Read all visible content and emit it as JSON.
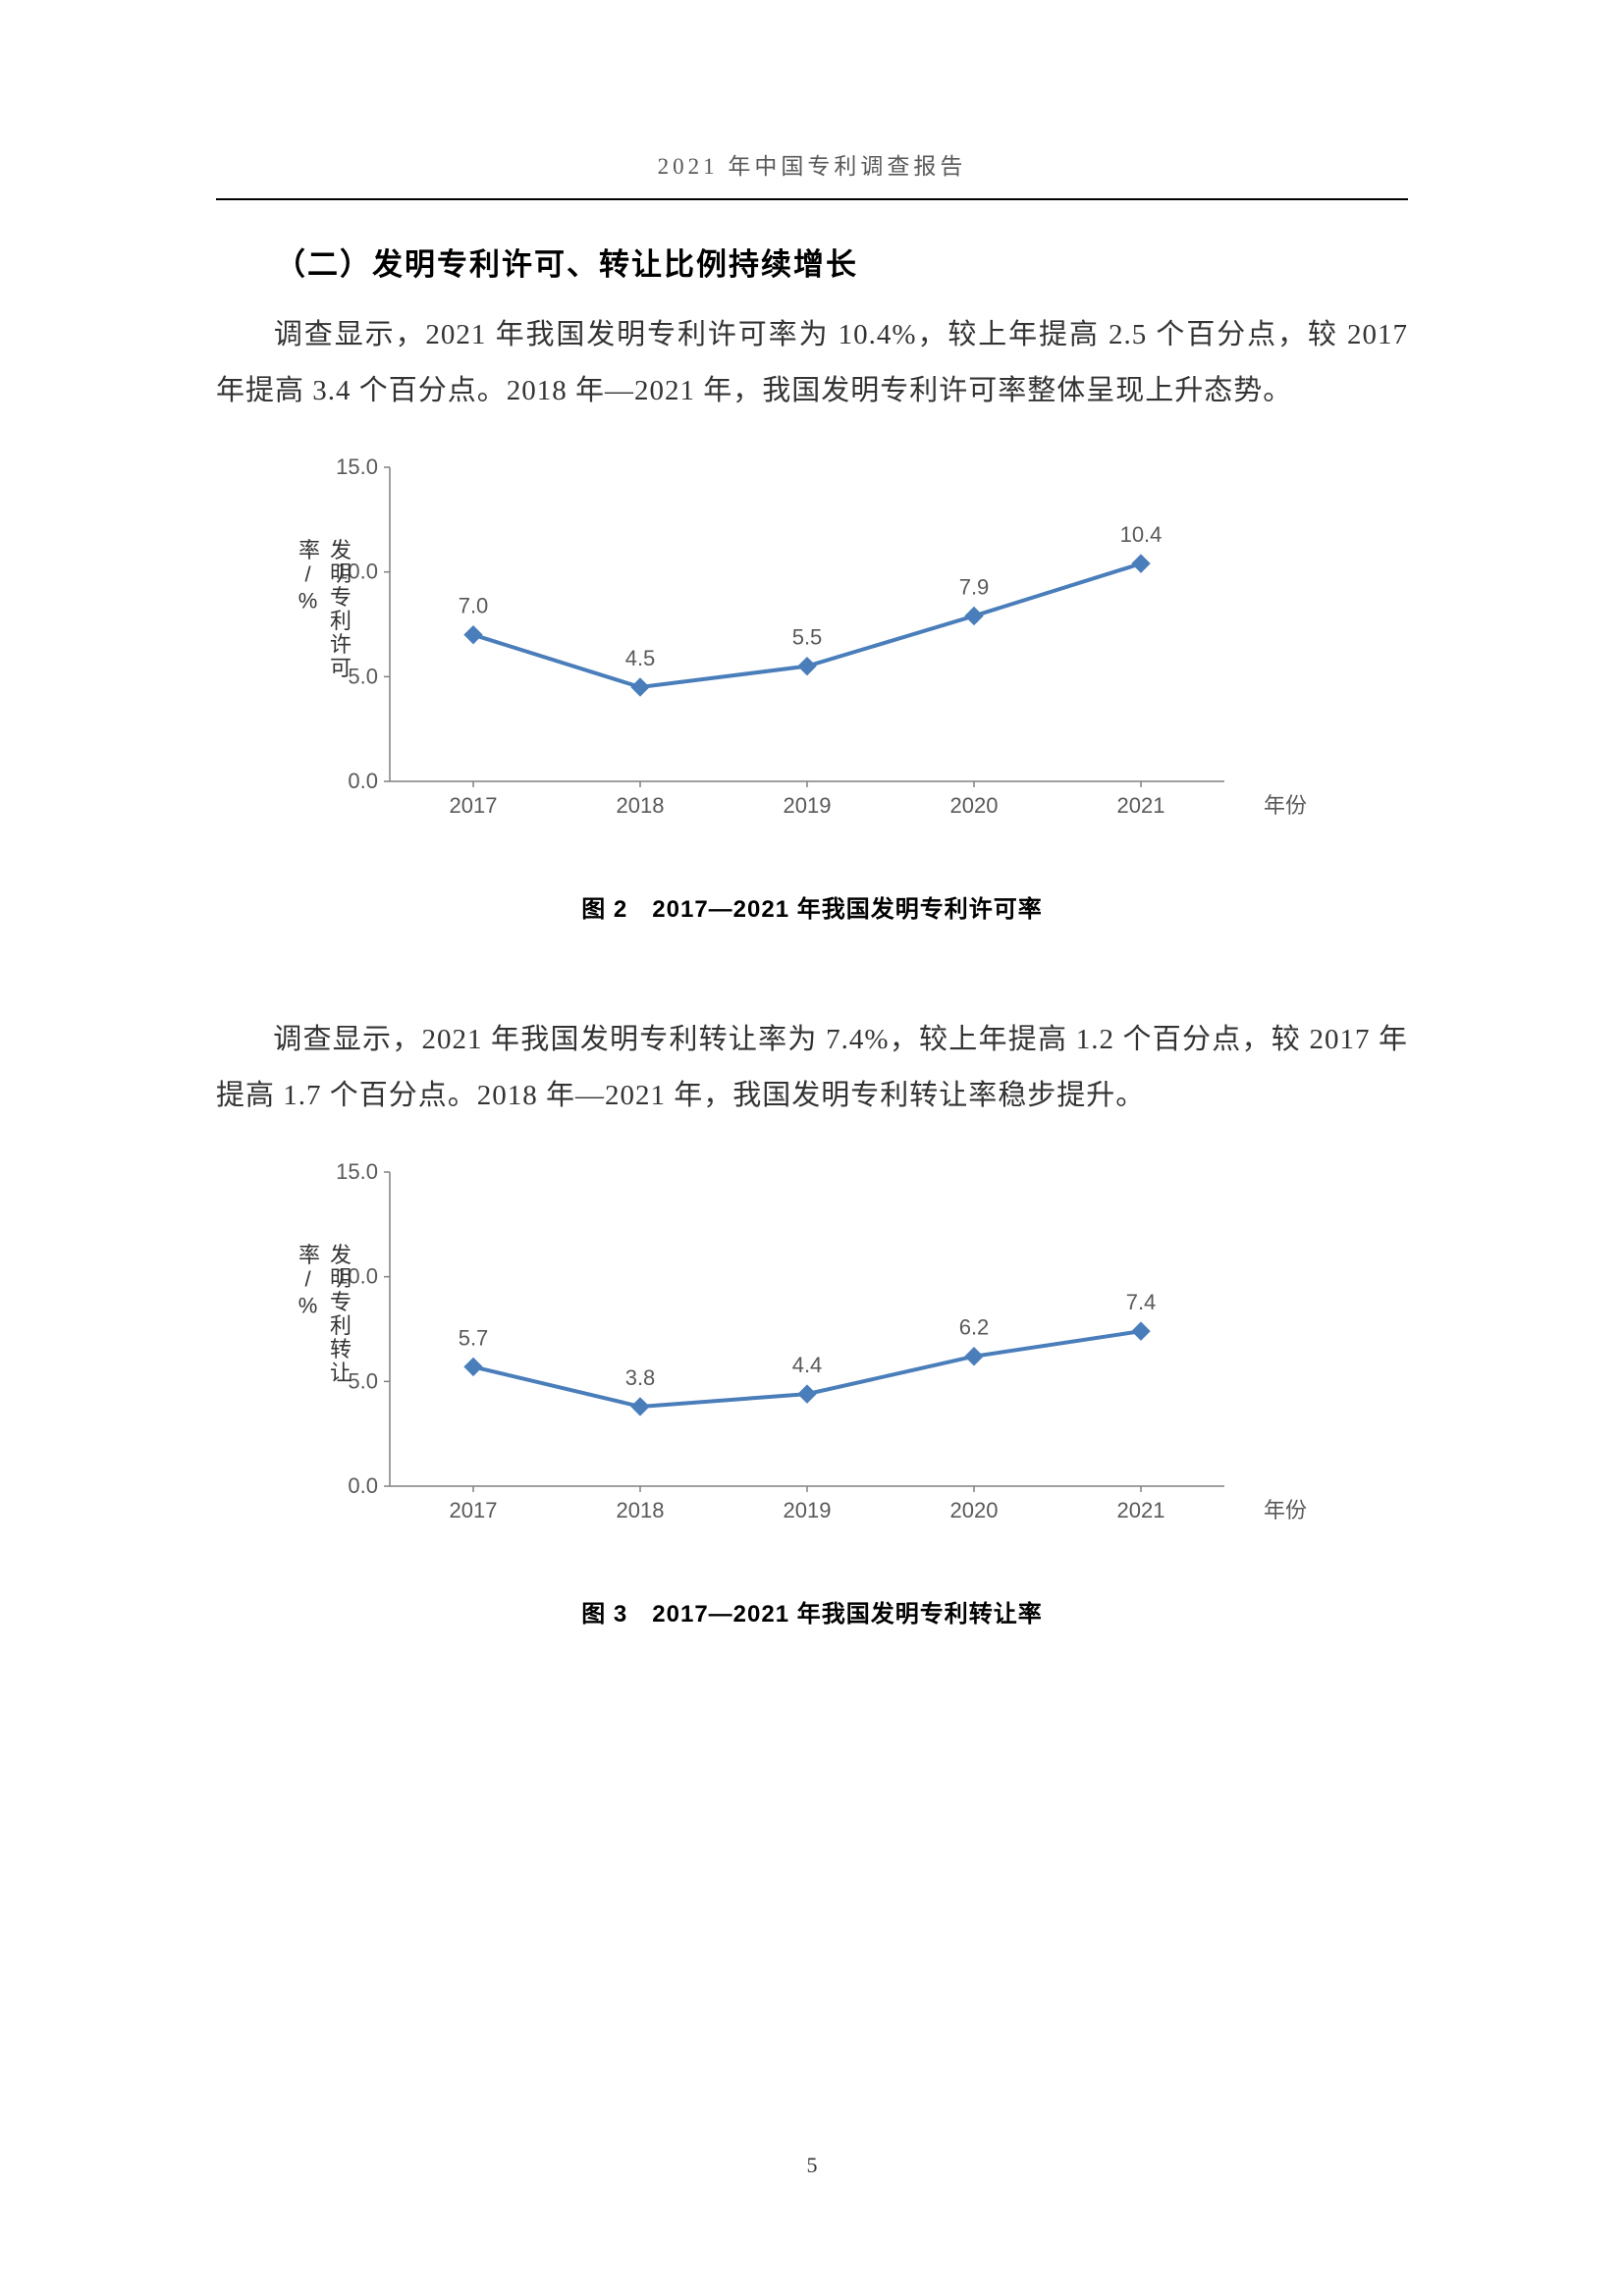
{
  "header": {
    "title": "2021 年中国专利调查报告"
  },
  "section": {
    "heading": "（二）发明专利许可、转让比例持续增长"
  },
  "para1": "调查显示，2021 年我国发明专利许可率为 10.4%，较上年提高 2.5 个百分点，较 2017 年提高 3.4 个百分点。2018 年—2021 年，我国发明专利许可率整体呈现上升态势。",
  "para2": "调查显示，2021 年我国发明专利转让率为 7.4%，较上年提高 1.2 个百分点，较 2017 年提高 1.7 个百分点。2018 年—2021 年，我国发明专利转让率稳步提升。",
  "chart1": {
    "type": "line",
    "ylabel": "发明专利许可率/%",
    "xlabel": "年份",
    "x_categories": [
      "2017",
      "2018",
      "2019",
      "2020",
      "2021"
    ],
    "values": [
      7.0,
      4.5,
      5.5,
      7.9,
      10.4
    ],
    "value_labels": [
      "7.0",
      "4.5",
      "5.5",
      "7.9",
      "10.4"
    ],
    "ylim": [
      0,
      15
    ],
    "ytick_step": 5,
    "yticks": [
      "0.0",
      "5.0",
      "10.0",
      "15.0"
    ],
    "line_color": "#4a7ebb",
    "line_width": 4,
    "marker_style": "diamond",
    "marker_size": 9,
    "marker_color": "#4a7ebb",
    "axis_color": "#808080",
    "tick_font_size": 22,
    "label_font_size": 22,
    "background": "#ffffff",
    "caption": "图 2　2017—2021 年我国发明专利许可率"
  },
  "chart2": {
    "type": "line",
    "ylabel": "发明专利转让率/%",
    "xlabel": "年份",
    "x_categories": [
      "2017",
      "2018",
      "2019",
      "2020",
      "2021"
    ],
    "values": [
      5.7,
      3.8,
      4.4,
      6.2,
      7.4
    ],
    "value_labels": [
      "5.7",
      "3.8",
      "4.4",
      "6.2",
      "7.4"
    ],
    "ylim": [
      0,
      15
    ],
    "ytick_step": 5,
    "yticks": [
      "0.0",
      "5.0",
      "10.0",
      "15.0"
    ],
    "line_color": "#4a7ebb",
    "line_width": 4,
    "marker_style": "diamond",
    "marker_size": 9,
    "marker_color": "#4a7ebb",
    "axis_color": "#808080",
    "tick_font_size": 22,
    "label_font_size": 22,
    "background": "#ffffff",
    "caption": "图 3　2017—2021 年我国发明专利转让率"
  },
  "page_number": "5"
}
